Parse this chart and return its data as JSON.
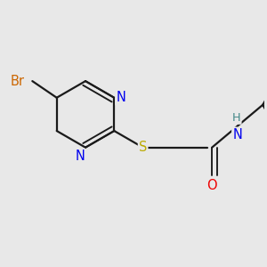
{
  "bg_color": "#e8e8e8",
  "bond_color": "#1a1a1a",
  "bond_width": 1.6,
  "dbo": 0.055,
  "atom_colors": {
    "Br": "#cc6600",
    "N": "#0000ee",
    "S": "#bbaa00",
    "O": "#ee0000",
    "NH": "#448888",
    "C": "#1a1a1a"
  },
  "font_size": 10.5
}
